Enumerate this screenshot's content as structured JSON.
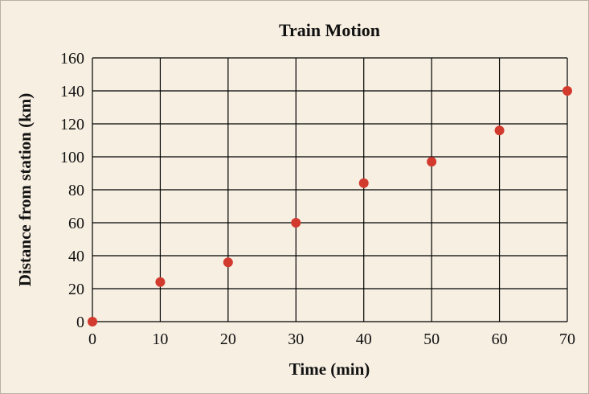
{
  "chart_data": {
    "type": "scatter",
    "title": "Train Motion",
    "xlabel": "Time (min)",
    "ylabel": "Distance from station (km)",
    "xlim": [
      0,
      70
    ],
    "ylim": [
      0,
      160
    ],
    "xticks": [
      "0",
      "10",
      "20",
      "30",
      "40",
      "50",
      "60",
      "70"
    ],
    "yticks": [
      "0",
      "20",
      "40",
      "60",
      "80",
      "100",
      "120",
      "140",
      "160"
    ],
    "grid": true,
    "legend": "none",
    "marker_color": "#d23a2e",
    "series": [
      {
        "x": [
          0,
          10,
          20,
          30,
          40,
          50,
          60,
          70
        ],
        "y": [
          0,
          24,
          36,
          60,
          84,
          97,
          116,
          140
        ]
      }
    ]
  }
}
